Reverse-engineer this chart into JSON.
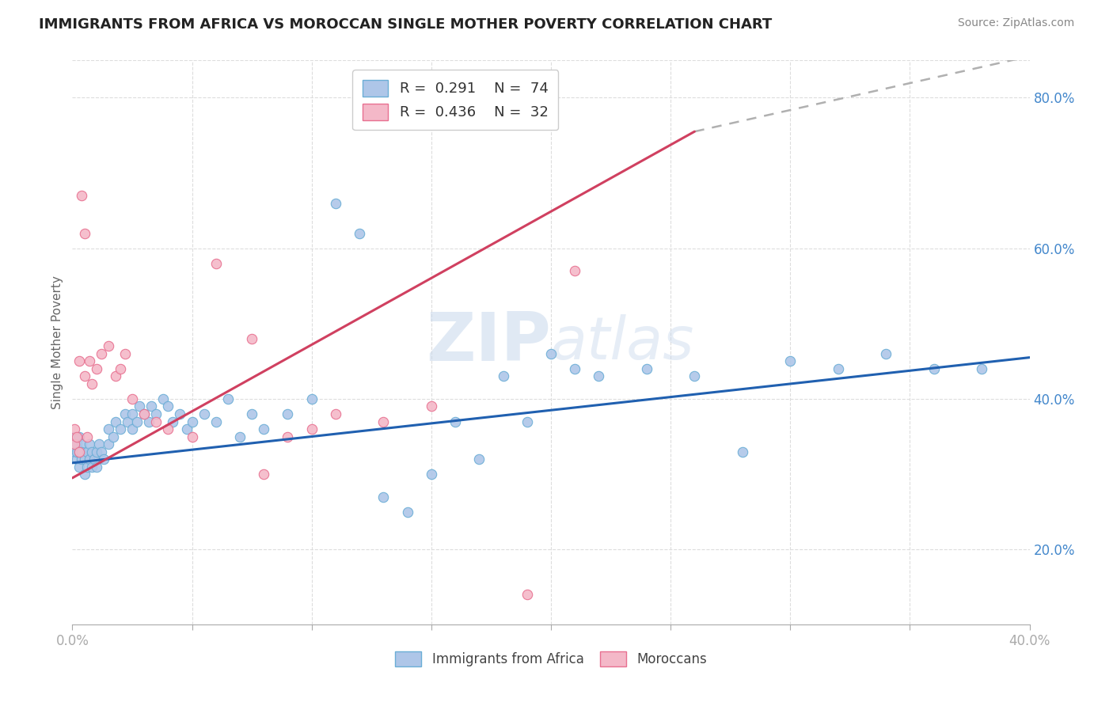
{
  "title": "IMMIGRANTS FROM AFRICA VS MOROCCAN SINGLE MOTHER POVERTY CORRELATION CHART",
  "source": "Source: ZipAtlas.com",
  "ylabel": "Single Mother Poverty",
  "xlim": [
    0.0,
    0.4
  ],
  "ylim": [
    0.1,
    0.85
  ],
  "yticks_right": [
    0.2,
    0.4,
    0.6,
    0.8
  ],
  "yticklabels_right": [
    "20.0%",
    "40.0%",
    "60.0%",
    "80.0%"
  ],
  "legend1_R": "0.291",
  "legend1_N": "74",
  "legend2_R": "0.436",
  "legend2_N": "32",
  "blue_color": "#6baed6",
  "blue_fill": "#aec6e8",
  "pink_color": "#e87090",
  "pink_fill": "#f4b8c8",
  "blue_line_color": "#2060b0",
  "pink_line_color": "#d04060",
  "dash_color": "#b0b0b0",
  "watermark_zip": "ZIP",
  "watermark_atlas": "atlas",
  "bg_color": "#ffffff",
  "grid_color": "#dddddd",
  "blue_x": [
    0.001,
    0.001,
    0.002,
    0.002,
    0.002,
    0.003,
    0.003,
    0.003,
    0.004,
    0.004,
    0.004,
    0.005,
    0.005,
    0.006,
    0.006,
    0.007,
    0.007,
    0.008,
    0.008,
    0.009,
    0.01,
    0.01,
    0.011,
    0.012,
    0.013,
    0.015,
    0.015,
    0.017,
    0.018,
    0.02,
    0.022,
    0.023,
    0.025,
    0.025,
    0.027,
    0.028,
    0.03,
    0.032,
    0.033,
    0.035,
    0.038,
    0.04,
    0.042,
    0.045,
    0.048,
    0.05,
    0.055,
    0.06,
    0.065,
    0.07,
    0.075,
    0.08,
    0.09,
    0.1,
    0.11,
    0.12,
    0.13,
    0.14,
    0.15,
    0.16,
    0.17,
    0.18,
    0.19,
    0.2,
    0.21,
    0.22,
    0.24,
    0.26,
    0.28,
    0.3,
    0.32,
    0.34,
    0.36,
    0.38
  ],
  "blue_y": [
    0.33,
    0.35,
    0.32,
    0.34,
    0.33,
    0.31,
    0.35,
    0.33,
    0.32,
    0.34,
    0.33,
    0.3,
    0.32,
    0.33,
    0.31,
    0.34,
    0.32,
    0.33,
    0.31,
    0.32,
    0.33,
    0.31,
    0.34,
    0.33,
    0.32,
    0.34,
    0.36,
    0.35,
    0.37,
    0.36,
    0.38,
    0.37,
    0.36,
    0.38,
    0.37,
    0.39,
    0.38,
    0.37,
    0.39,
    0.38,
    0.4,
    0.39,
    0.37,
    0.38,
    0.36,
    0.37,
    0.38,
    0.37,
    0.4,
    0.35,
    0.38,
    0.36,
    0.38,
    0.4,
    0.66,
    0.62,
    0.27,
    0.25,
    0.3,
    0.37,
    0.32,
    0.43,
    0.37,
    0.46,
    0.44,
    0.43,
    0.44,
    0.43,
    0.33,
    0.45,
    0.44,
    0.46,
    0.44,
    0.44
  ],
  "pink_x": [
    0.001,
    0.001,
    0.002,
    0.003,
    0.003,
    0.004,
    0.005,
    0.005,
    0.006,
    0.007,
    0.008,
    0.01,
    0.012,
    0.015,
    0.018,
    0.02,
    0.022,
    0.025,
    0.03,
    0.035,
    0.04,
    0.05,
    0.06,
    0.075,
    0.08,
    0.09,
    0.1,
    0.11,
    0.13,
    0.15,
    0.19,
    0.21
  ],
  "pink_y": [
    0.36,
    0.34,
    0.35,
    0.33,
    0.45,
    0.67,
    0.62,
    0.43,
    0.35,
    0.45,
    0.42,
    0.44,
    0.46,
    0.47,
    0.43,
    0.44,
    0.46,
    0.4,
    0.38,
    0.37,
    0.36,
    0.35,
    0.58,
    0.48,
    0.3,
    0.35,
    0.36,
    0.38,
    0.37,
    0.39,
    0.14,
    0.57
  ],
  "blue_line_x0": 0.0,
  "blue_line_y0": 0.315,
  "blue_line_x1": 0.4,
  "blue_line_y1": 0.455,
  "pink_line_x0": 0.0,
  "pink_line_y0": 0.295,
  "pink_line_x1": 0.26,
  "pink_line_y1": 0.755,
  "dash_line_x0": 0.26,
  "dash_line_y0": 0.755,
  "dash_line_x1": 0.4,
  "dash_line_y1": 0.855
}
